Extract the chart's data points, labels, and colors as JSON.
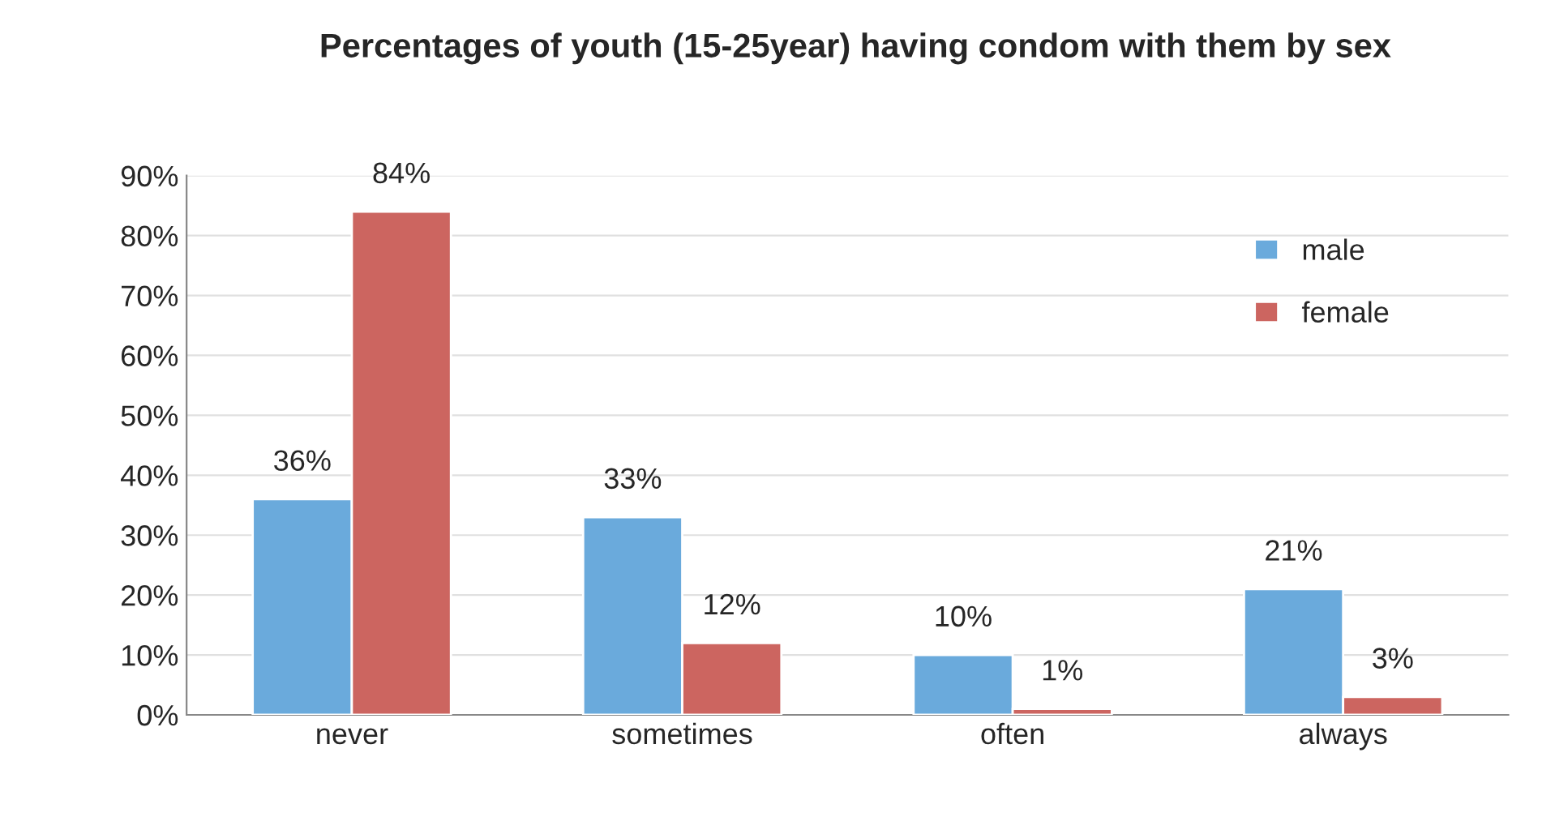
{
  "chart_data": {
    "type": "bar",
    "title": "Percentages of youth (15-25year) having condom with them by sex",
    "categories": [
      "never",
      "sometimes",
      "often",
      "always"
    ],
    "series": [
      {
        "name": "male",
        "color": "#6aaadc",
        "values": [
          36,
          33,
          10,
          21
        ],
        "value_labels": [
          "36%",
          "33%",
          "10%",
          "21%"
        ]
      },
      {
        "name": "female",
        "color": "#cc6560",
        "values": [
          84,
          12,
          1,
          3
        ],
        "value_labels": [
          "84%",
          "12%",
          "1%",
          "3%"
        ]
      }
    ],
    "ylim": [
      0,
      90
    ],
    "yticks": [
      {
        "value": 0,
        "label": "0%"
      },
      {
        "value": 10,
        "label": "10%"
      },
      {
        "value": 20,
        "label": "20%"
      },
      {
        "value": 30,
        "label": "30%"
      },
      {
        "value": 40,
        "label": "40%"
      },
      {
        "value": 50,
        "label": "50%"
      },
      {
        "value": 60,
        "label": "60%"
      },
      {
        "value": 70,
        "label": "70%"
      },
      {
        "value": 80,
        "label": "80%"
      },
      {
        "value": 90,
        "label": "90%"
      }
    ],
    "grid": "y",
    "legend": "right"
  }
}
